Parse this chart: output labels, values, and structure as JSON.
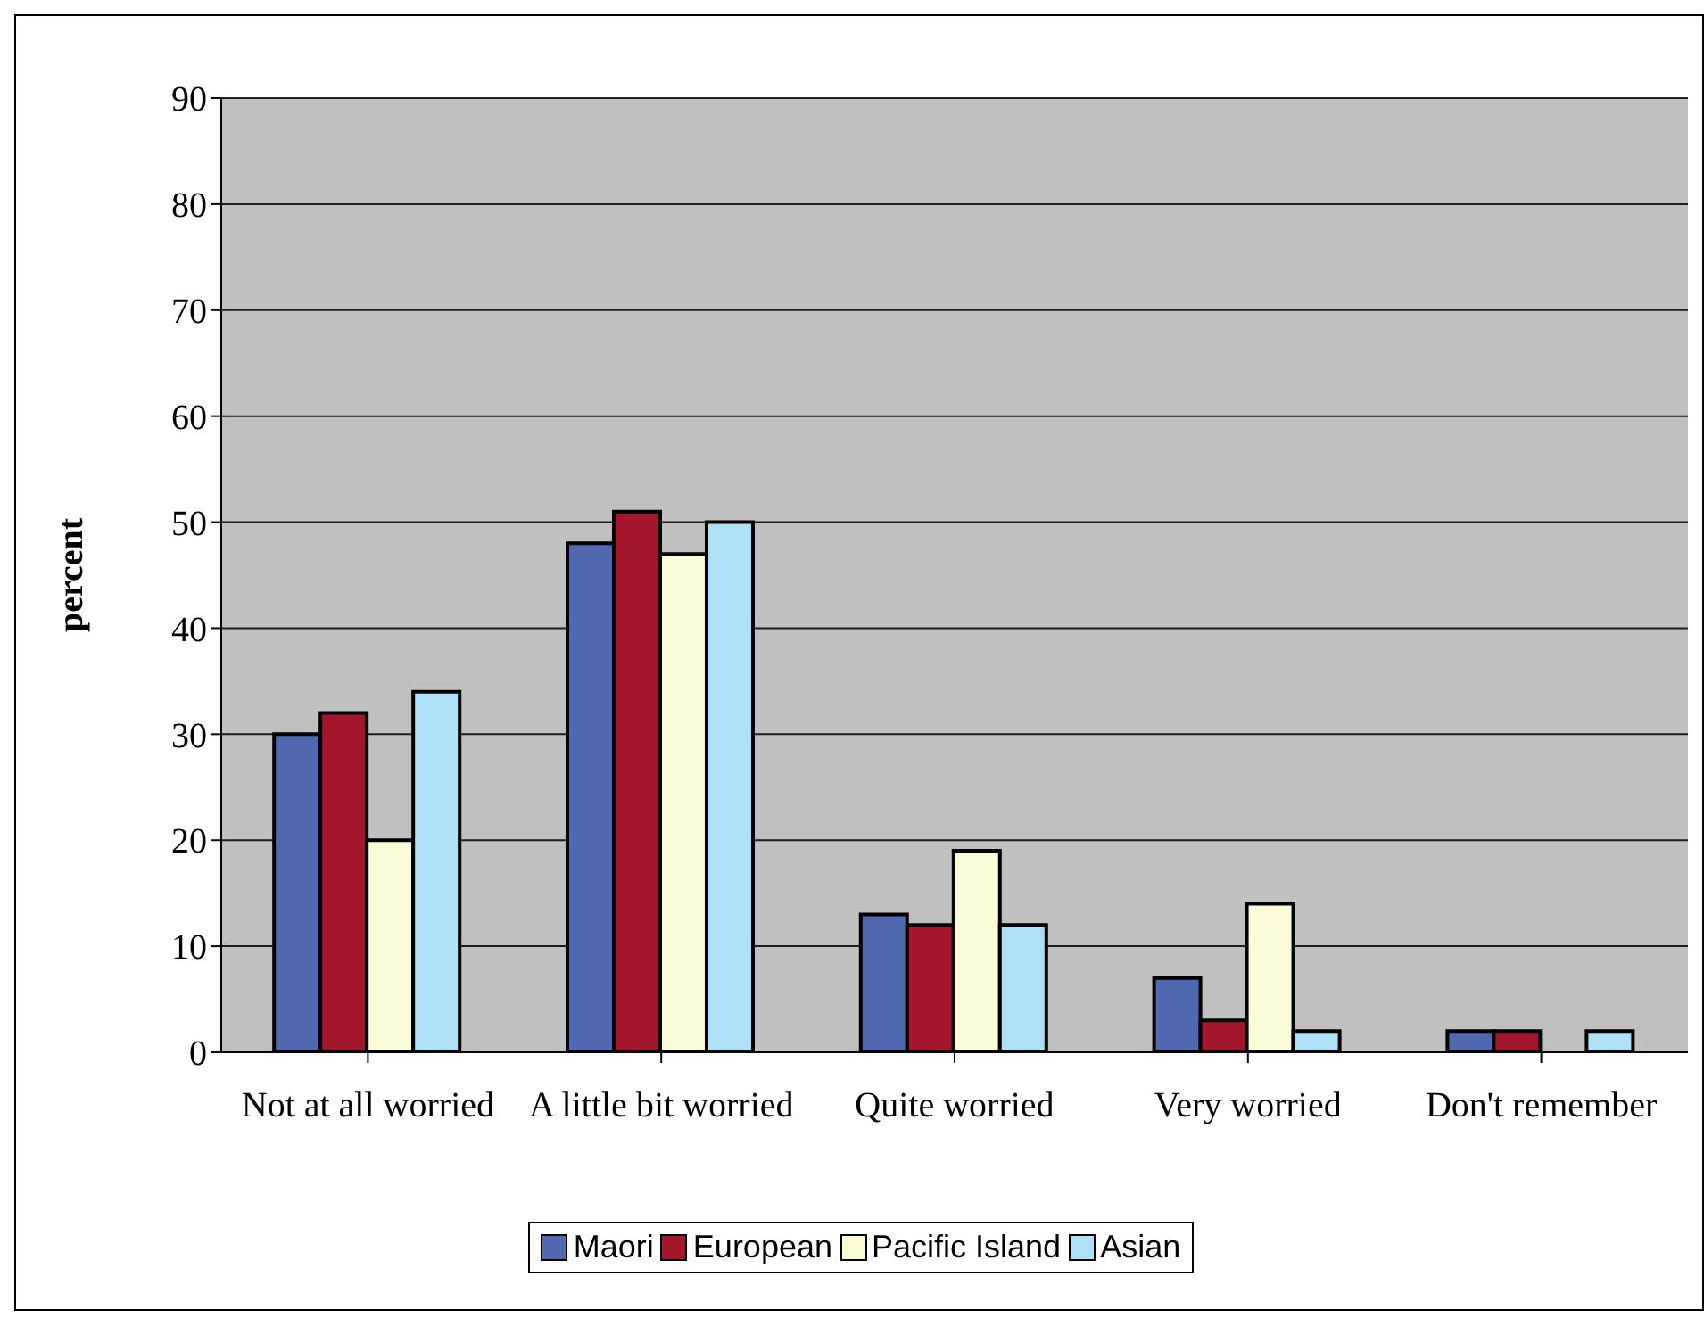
{
  "chart_data": {
    "type": "bar",
    "ylabel": "percent",
    "categories": [
      "Not at all worried",
      "A little bit worried",
      "Quite worried",
      "Very worried",
      "Don't remember"
    ],
    "series": [
      {
        "name": "Maori",
        "color": "#4f68b0",
        "values": [
          30,
          48,
          13,
          7,
          2
        ]
      },
      {
        "name": "European",
        "color": "#a3162b",
        "values": [
          32,
          51,
          12,
          3,
          2
        ]
      },
      {
        "name": "Pacific Island",
        "color": "#fbfbd8",
        "values": [
          20,
          47,
          19,
          14,
          0
        ]
      },
      {
        "name": "Asian",
        "color": "#aee0f8",
        "values": [
          34,
          50,
          12,
          2,
          2
        ]
      }
    ],
    "ylim": [
      0,
      90
    ],
    "yticks": [
      0,
      10,
      20,
      30,
      40,
      50,
      60,
      70,
      80,
      90
    ],
    "grid": "y",
    "legend": "bottom"
  }
}
